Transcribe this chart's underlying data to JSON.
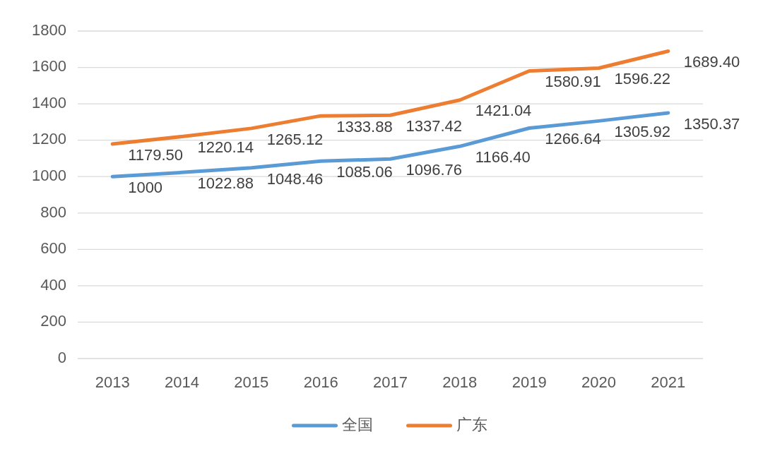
{
  "chart_data": {
    "type": "line",
    "categories": [
      "2013",
      "2014",
      "2015",
      "2016",
      "2017",
      "2018",
      "2019",
      "2020",
      "2021"
    ],
    "ylim": [
      0,
      1800
    ],
    "yticks": [
      0,
      200,
      400,
      600,
      800,
      1000,
      1200,
      1400,
      1600,
      1800
    ],
    "grid": "y",
    "legend": "bottom",
    "marker": "none",
    "series": [
      {
        "name": "全国",
        "color": "#5b9bd5",
        "values": [
          1000,
          1022.88,
          1048.46,
          1085.06,
          1096.76,
          1166.4,
          1266.64,
          1305.92,
          1350.37
        ],
        "value_labels": [
          "1000",
          "1022.88",
          "1048.46",
          "1085.06",
          "1096.76",
          "1166.40",
          "1266.64",
          "1305.92",
          "1350.37"
        ]
      },
      {
        "name": "广东",
        "color": "#ed7d31",
        "values": [
          1179.5,
          1220.14,
          1265.12,
          1333.88,
          1337.42,
          1421.04,
          1580.91,
          1596.22,
          1689.4
        ],
        "value_labels": [
          "1179.50",
          "1220.14",
          "1265.12",
          "1333.88",
          "1337.42",
          "1421.04",
          "1580.91",
          "1596.22",
          "1689.40"
        ]
      }
    ]
  }
}
